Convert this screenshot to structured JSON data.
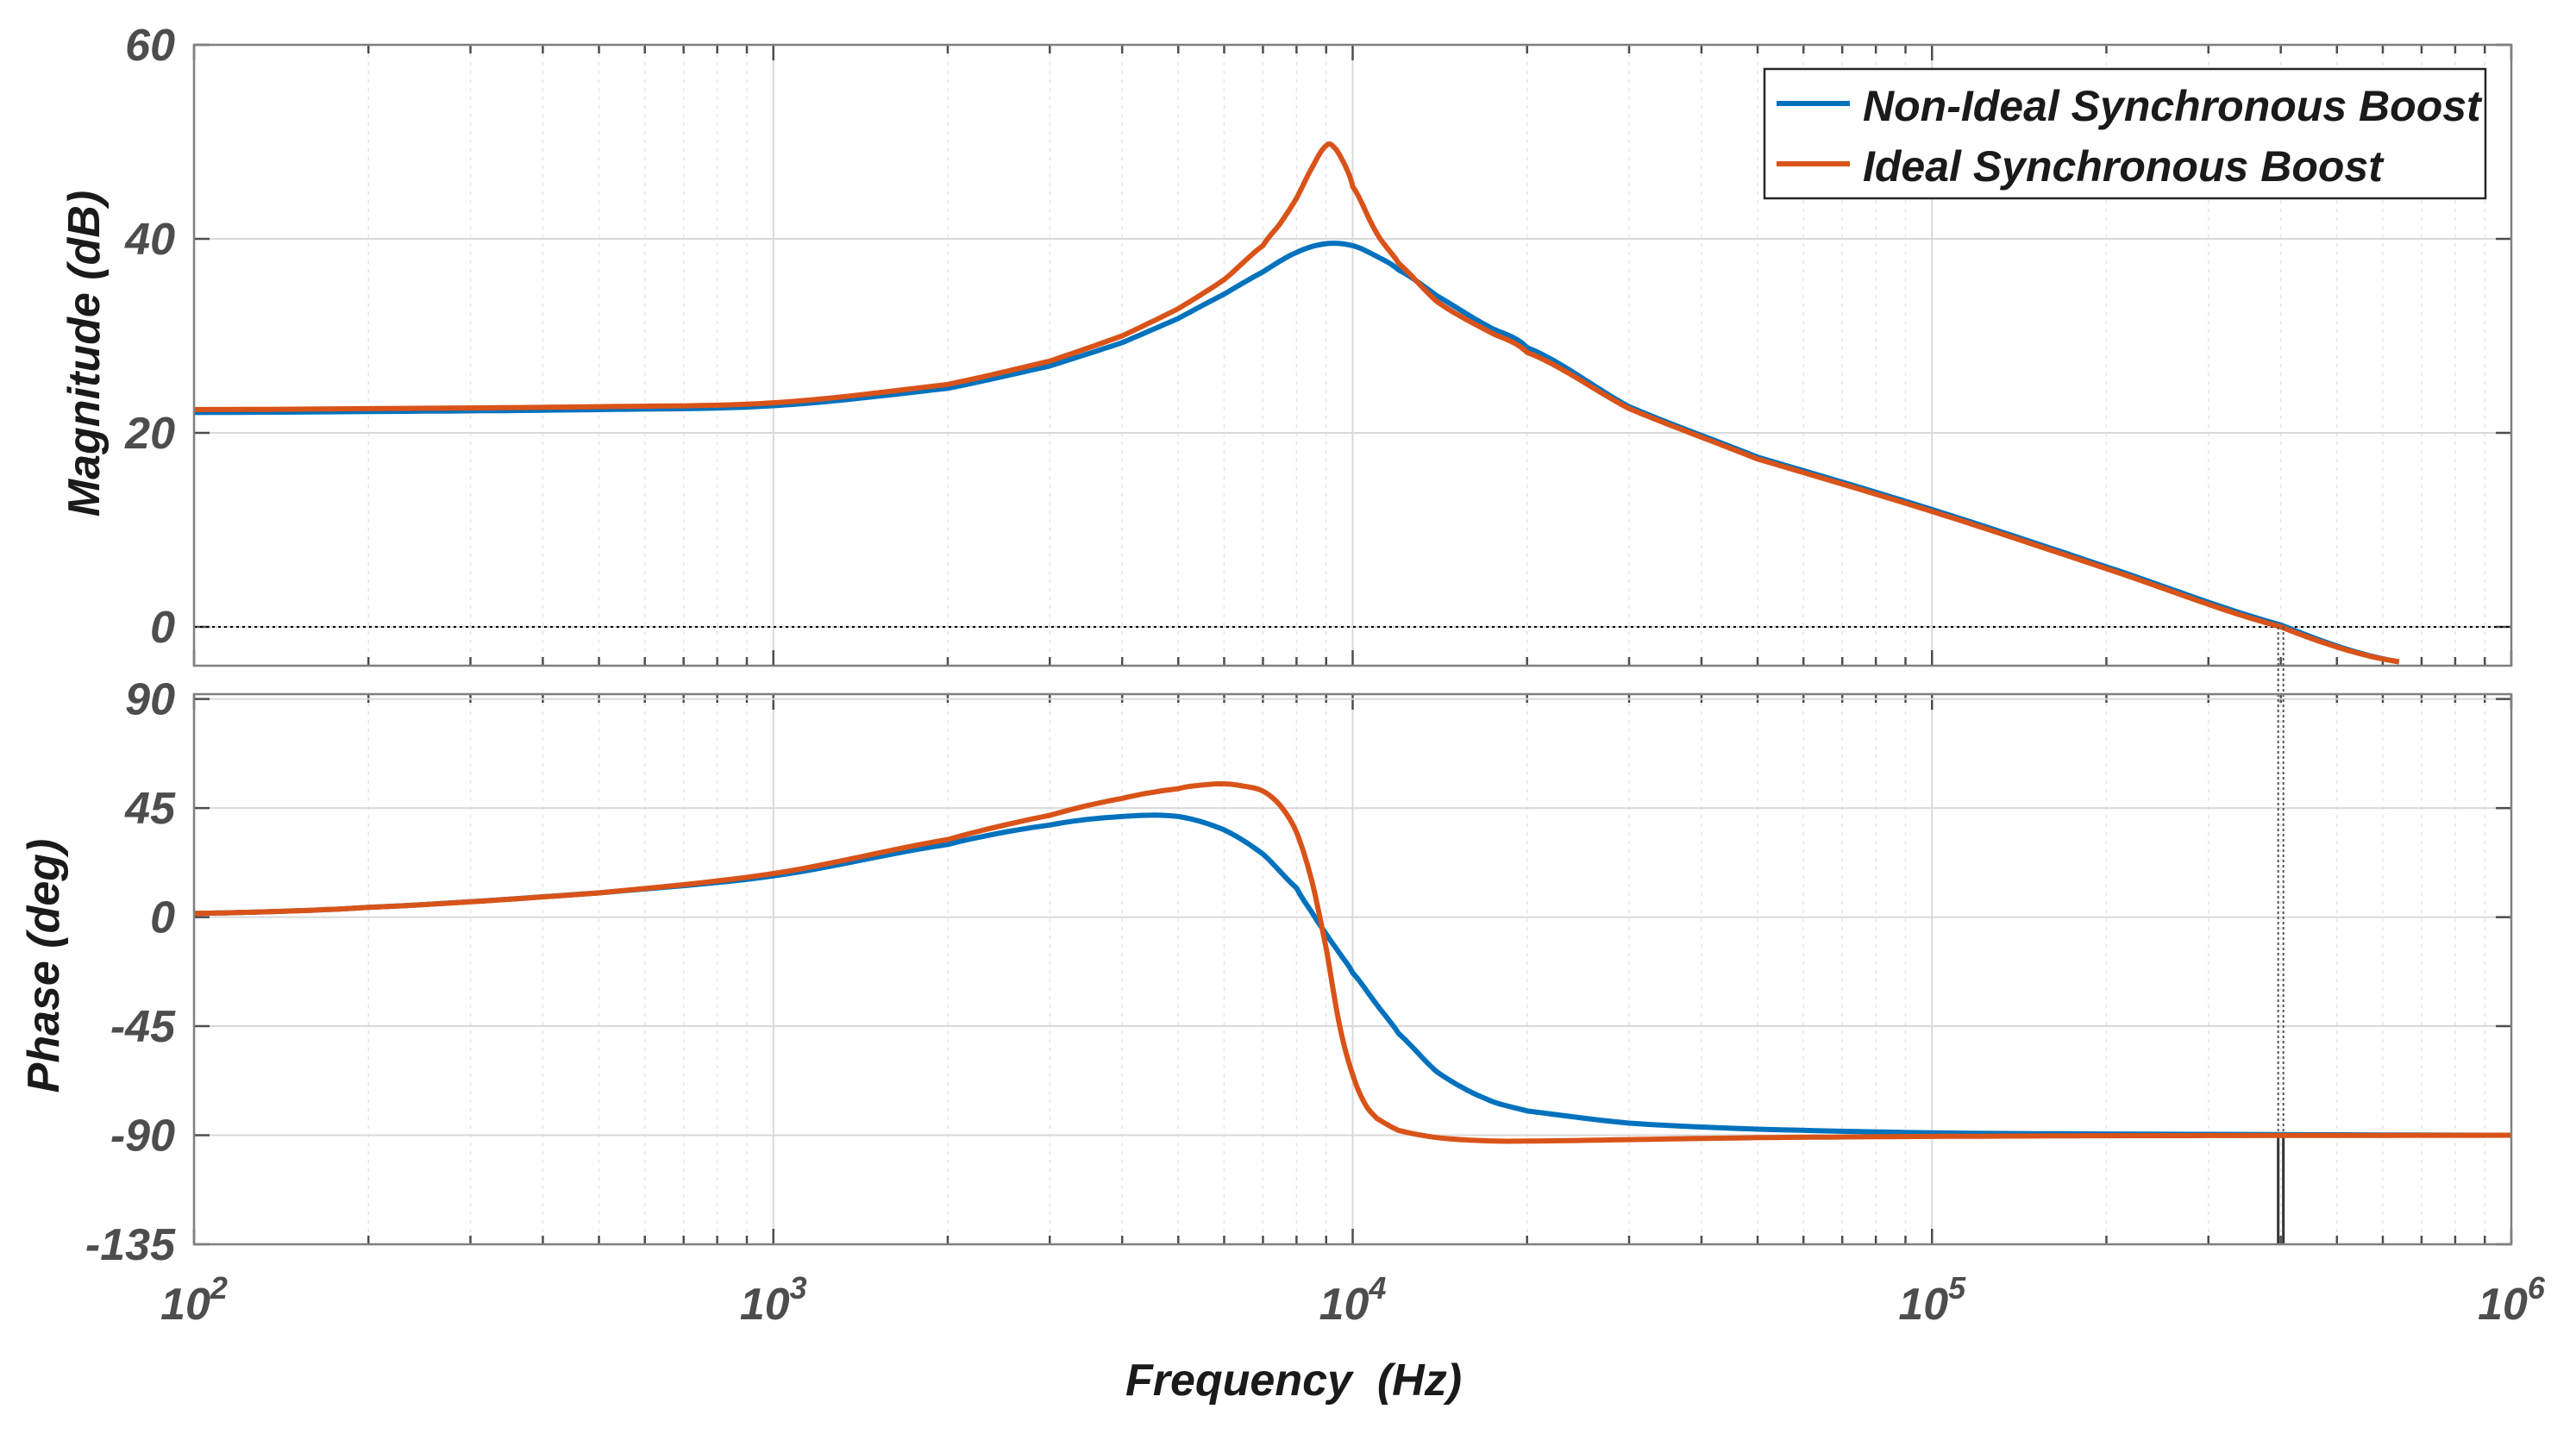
{
  "chart_data": {
    "type": "line",
    "title": "",
    "xlabel": "Frequency  (Hz)",
    "xscale": "log",
    "xlim": [
      100,
      1000000
    ],
    "x_ticks": [
      {
        "base": "10",
        "exp": "2"
      },
      {
        "base": "10",
        "exp": "3"
      },
      {
        "base": "10",
        "exp": "4"
      },
      {
        "base": "10",
        "exp": "5"
      },
      {
        "base": "10",
        "exp": "6"
      }
    ],
    "legend_position": "top-right",
    "colors": {
      "non_ideal": "#0072bd",
      "ideal": "#d95319",
      "zero_line": "#000000"
    },
    "legend": [
      "Non-Ideal Synchronous Boost",
      "Ideal Synchronous Boost"
    ],
    "crossover_frequency": 400000,
    "magnitude": {
      "ylabel": "Magnitude (dB)",
      "ylim": [
        -4,
        60
      ],
      "y_ticks": [
        "60",
        "40",
        "20",
        "0"
      ],
      "y_tick_values": [
        60,
        40,
        20,
        0
      ],
      "series": [
        {
          "name": "Non-Ideal Synchronous Boost",
          "x": [
            100,
            200,
            500,
            1000,
            2000,
            3000,
            4000,
            5000,
            6000,
            7000,
            8000,
            9000,
            10000,
            11000,
            12000,
            14000,
            17000,
            20000,
            30000,
            50000,
            100000,
            200000,
            400000,
            640000
          ],
          "y": [
            22.1,
            22.2,
            22.4,
            22.8,
            24.6,
            26.9,
            29.3,
            31.8,
            34.3,
            36.6,
            38.6,
            39.5,
            39.3,
            38.2,
            36.8,
            34.1,
            31.1,
            28.8,
            22.7,
            17.5,
            12.1,
            6.2,
            0.2,
            -3.6
          ]
        },
        {
          "name": "Ideal Synchronous Boost",
          "x": [
            100,
            200,
            500,
            1000,
            2000,
            3000,
            4000,
            5000,
            6000,
            7000,
            7500,
            8000,
            8500,
            9000,
            9300,
            9700,
            10000,
            11000,
            12000,
            14000,
            17000,
            20000,
            30000,
            50000,
            100000,
            200000,
            400000,
            640000
          ],
          "y": [
            22.4,
            22.5,
            22.7,
            23.1,
            25.0,
            27.4,
            30.0,
            32.8,
            35.8,
            39.3,
            41.6,
            44.2,
            47.3,
            49.6,
            49.4,
            47.6,
            45.4,
            40.6,
            37.5,
            33.5,
            30.6,
            28.3,
            22.5,
            17.3,
            11.9,
            6.0,
            0.0,
            -3.6
          ]
        }
      ]
    },
    "phase": {
      "ylabel": "Phase (deg)",
      "ylim": [
        -135,
        92
      ],
      "y_ticks": [
        "90",
        "45",
        "0",
        "-45",
        "-90",
        "-135"
      ],
      "y_tick_values": [
        90,
        45,
        0,
        -45,
        -90,
        -135
      ],
      "series": [
        {
          "name": "Non-Ideal Synchronous Boost",
          "x": [
            100,
            200,
            500,
            1000,
            2000,
            3000,
            4000,
            5000,
            6000,
            7000,
            8000,
            8500,
            9000,
            9500,
            10000,
            11000,
            12000,
            14000,
            17000,
            20000,
            30000,
            50000,
            100000,
            200000,
            1000000
          ],
          "y": [
            1.5,
            4,
            10,
            17,
            30,
            38,
            41.5,
            41.5,
            36,
            26,
            12,
            2,
            -7,
            -15,
            -23,
            -36,
            -48,
            -64,
            -75,
            -80,
            -85,
            -87.5,
            -89,
            -89.5,
            -90
          ]
        },
        {
          "name": "Ideal Synchronous Boost",
          "x": [
            100,
            200,
            500,
            1000,
            2000,
            3000,
            4000,
            5000,
            5500,
            6000,
            6500,
            7000,
            7500,
            8000,
            8500,
            9000,
            9500,
            10000,
            10500,
            11000,
            12000,
            14000,
            17000,
            20000,
            30000,
            50000,
            100000,
            200000,
            1000000
          ],
          "y": [
            1.5,
            4,
            10,
            18,
            32,
            42,
            49,
            53,
            54.5,
            55,
            54,
            52,
            46,
            35,
            15,
            -13,
            -45,
            -65,
            -77,
            -83,
            -88,
            -91,
            -92.3,
            -92.4,
            -91.8,
            -91,
            -90.5,
            -90.2,
            -90
          ]
        }
      ]
    }
  }
}
